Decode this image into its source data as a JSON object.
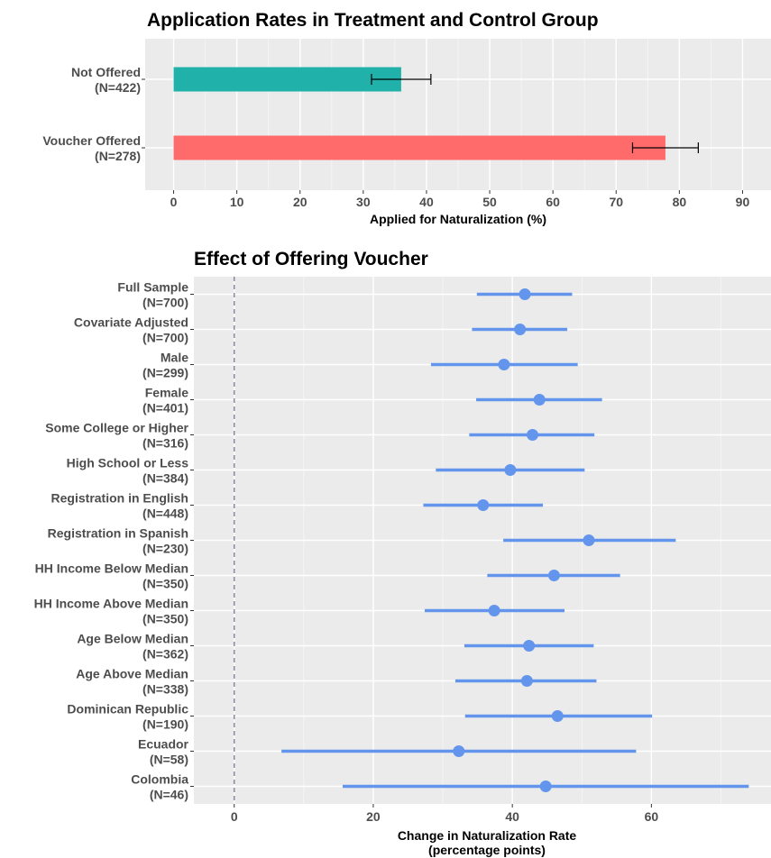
{
  "chart_data": [
    {
      "type": "bar",
      "orientation": "horizontal",
      "title": "Application Rates in Treatment and Control Group",
      "xlabel": "Applied for Naturalization (%)",
      "ylabel": "",
      "xlim": [
        -4.5,
        94.5
      ],
      "xticks": [
        0,
        10,
        20,
        30,
        40,
        50,
        60,
        70,
        80,
        90
      ],
      "grid": true,
      "legend": "none",
      "categories": [
        {
          "label": "Not Offered",
          "n": "(N=422)",
          "value": 36,
          "ci_low": 31.3,
          "ci_high": 40.7,
          "color": "#20b2aa"
        },
        {
          "label": "Voucher Offered",
          "n": "(N=278)",
          "value": 77.8,
          "ci_low": 72.6,
          "ci_high": 83,
          "color": "#ff6b6b"
        }
      ]
    },
    {
      "type": "scatter",
      "subtype": "coefficient-plot",
      "title": "Effect of Offering Voucher",
      "xlabel_line1": "Change in Naturalization Rate",
      "xlabel_line2": "(percentage points)",
      "ylabel": "",
      "xlim": [
        -5.8,
        77.2
      ],
      "xticks": [
        0,
        20,
        40,
        60
      ],
      "reference_line": 0,
      "grid": true,
      "legend": "none",
      "color": "#6495ed",
      "rows": [
        {
          "label": "Full Sample",
          "n": "(N=700)",
          "estimate": 41.8,
          "ci_low": 34.9,
          "ci_high": 48.6
        },
        {
          "label": "Covariate Adjusted",
          "n": "(N=700)",
          "estimate": 41.1,
          "ci_low": 34.2,
          "ci_high": 47.9
        },
        {
          "label": "Male",
          "n": "(N=299)",
          "estimate": 38.8,
          "ci_low": 28.3,
          "ci_high": 49.4
        },
        {
          "label": "Female",
          "n": "(N=401)",
          "estimate": 43.9,
          "ci_low": 34.8,
          "ci_high": 52.9
        },
        {
          "label": "Some College or Higher",
          "n": "(N=316)",
          "estimate": 42.9,
          "ci_low": 33.8,
          "ci_high": 51.8
        },
        {
          "label": "High School or Less",
          "n": "(N=384)",
          "estimate": 39.7,
          "ci_low": 29,
          "ci_high": 50.4
        },
        {
          "label": "Registration in English",
          "n": "(N=448)",
          "estimate": 35.8,
          "ci_low": 27.2,
          "ci_high": 44.4
        },
        {
          "label": "Registration in Spanish",
          "n": "(N=230)",
          "estimate": 51,
          "ci_low": 38.7,
          "ci_high": 63.5
        },
        {
          "label": "HH Income Below Median",
          "n": "(N=350)",
          "estimate": 46,
          "ci_low": 36.4,
          "ci_high": 55.5
        },
        {
          "label": "HH Income Above Median",
          "n": "(N=350)",
          "estimate": 37.4,
          "ci_low": 27.4,
          "ci_high": 47.5
        },
        {
          "label": "Age Below Median",
          "n": "(N=362)",
          "estimate": 42.4,
          "ci_low": 33.1,
          "ci_high": 51.7
        },
        {
          "label": "Age Above Median",
          "n": "(N=338)",
          "estimate": 42.1,
          "ci_low": 31.8,
          "ci_high": 52.1
        },
        {
          "label": "Dominican Republic",
          "n": "(N=190)",
          "estimate": 46.5,
          "ci_low": 33.2,
          "ci_high": 60.1
        },
        {
          "label": "Ecuador",
          "n": "(N=58)",
          "estimate": 32.3,
          "ci_low": 6.8,
          "ci_high": 57.8
        },
        {
          "label": "Colombia",
          "n": "(N=46)",
          "estimate": 44.8,
          "ci_low": 15.6,
          "ci_high": 74
        }
      ]
    }
  ]
}
